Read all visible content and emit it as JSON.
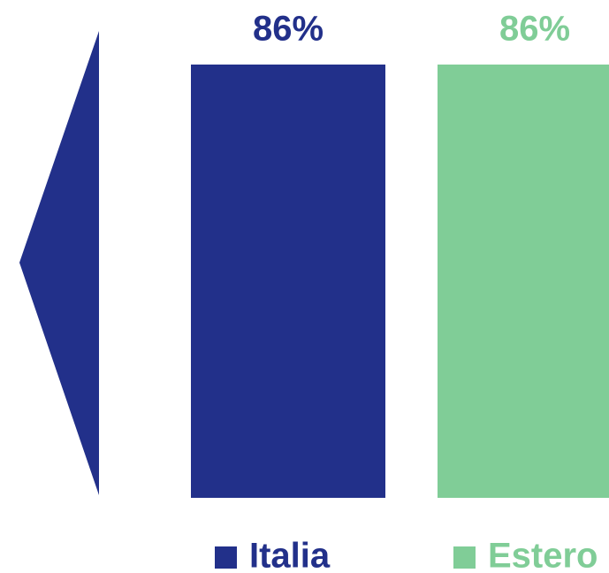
{
  "chart_data": {
    "type": "bar",
    "categories": [
      null
    ],
    "series": [
      {
        "name": "Italia",
        "color": "#22308a",
        "values": [
          86
        ],
        "value_labels": [
          "86%"
        ]
      },
      {
        "name": "Estero",
        "color": "#80cd97",
        "values": [
          86
        ],
        "value_labels": [
          "86%"
        ]
      }
    ],
    "legend": "bottom"
  }
}
